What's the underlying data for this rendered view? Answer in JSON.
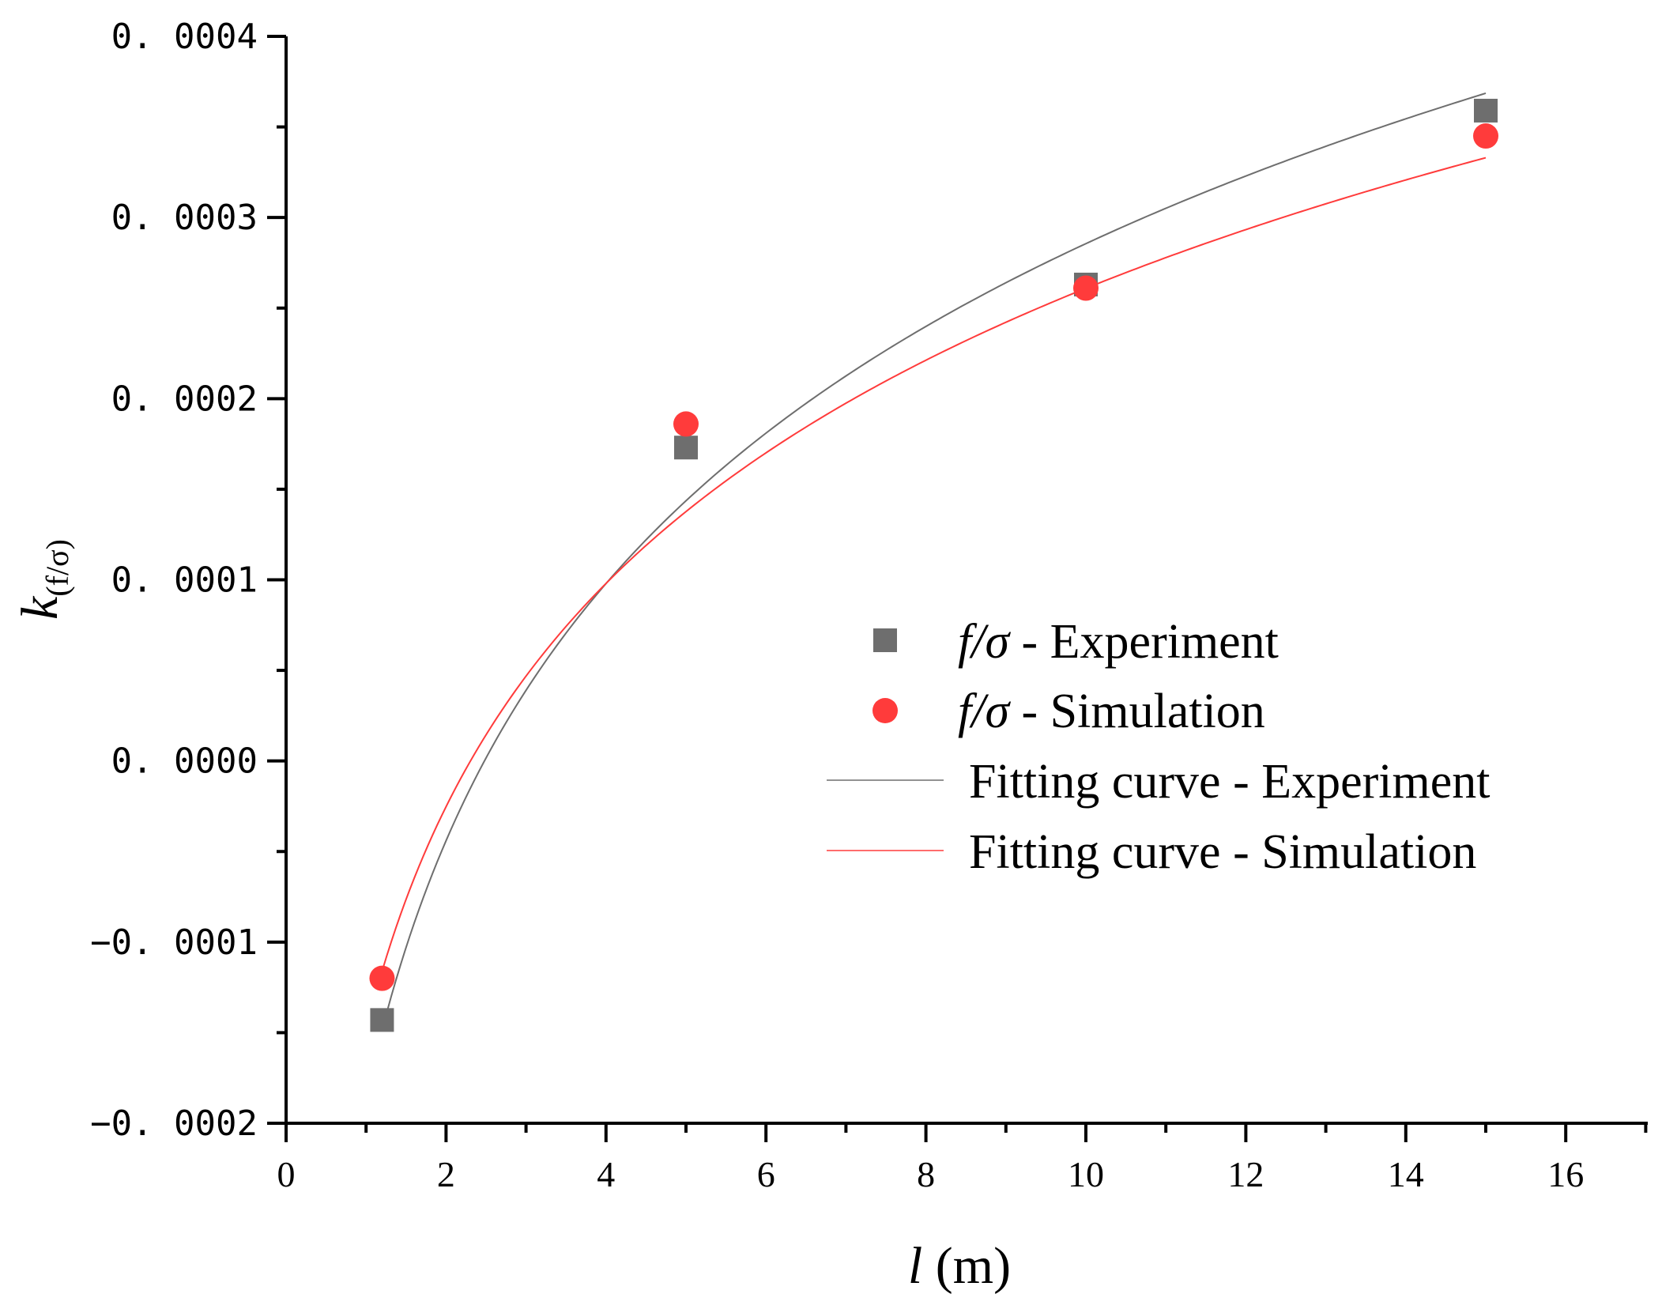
{
  "chart_data": {
    "type": "scatter",
    "title": "",
    "xlabel": {
      "var": "l",
      "unit": " (m)"
    },
    "ylabel": {
      "var": "k",
      "sub": "(f/σ)"
    },
    "xlim": [
      0,
      17
    ],
    "ylim": [
      -0.0002,
      0.0004
    ],
    "x_ticks": [
      0,
      2,
      4,
      6,
      8,
      10,
      12,
      14,
      16
    ],
    "x_tick_labels": [
      "0",
      "2",
      "4",
      "6",
      "8",
      "10",
      "12",
      "14",
      "16"
    ],
    "y_ticks": [
      -0.0002,
      -0.0001,
      0.0,
      0.0001,
      0.0002,
      0.0003,
      0.0004
    ],
    "y_tick_labels": [
      "−0. 0002",
      "−0. 0001",
      "0. 0000",
      "0. 0001",
      "0. 0002",
      "0. 0003",
      "0. 0004"
    ],
    "grid": false,
    "legend_position": "center-right",
    "series": [
      {
        "name": "f/σ - Experiment",
        "legend_italic": "f/σ",
        "legend_rest": " - Experiment",
        "kind": "points",
        "marker": "square",
        "color": "#6e6e6e",
        "x": [
          1.2,
          5,
          10,
          15
        ],
        "y": [
          -0.000143,
          0.000173,
          0.000263,
          0.000359
        ]
      },
      {
        "name": "f/σ - Simulation",
        "legend_italic": "f/σ",
        "legend_rest": " - Simulation",
        "kind": "points",
        "marker": "circle",
        "color": "#ff3b3b",
        "x": [
          1.2,
          5,
          10,
          15
        ],
        "y": [
          -0.00012,
          0.000186,
          0.000261,
          0.000345
        ]
      },
      {
        "name": "Fitting curve - Experiment",
        "kind": "line",
        "color": "#6e6e6e",
        "model": "a + b*ln(x)",
        "coefficients": {
          "a": -0.000186,
          "b": 0.0002048
        },
        "x_range": [
          1.2,
          15
        ]
      },
      {
        "name": "Fitting curve - Simulation",
        "kind": "line",
        "color": "#ff3b3b",
        "model": "a + b*ln(x)",
        "coefficients": {
          "a": -0.0001485,
          "b": 0.0001778
        },
        "x_range": [
          1.2,
          15
        ]
      }
    ]
  }
}
